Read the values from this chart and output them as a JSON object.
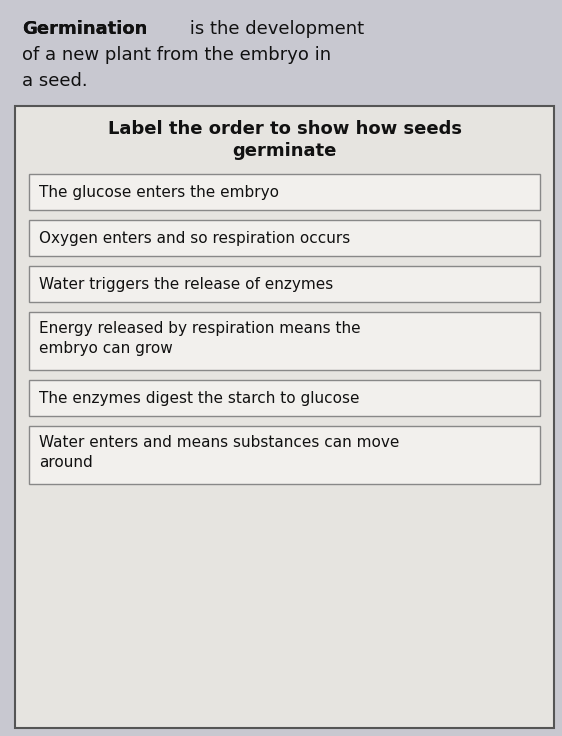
{
  "bg_color": "#c8c8d0",
  "page_bg": "#f0eeeb",
  "intro_bold": "Germination",
  "intro_normal": " is the development",
  "intro_line2": "of a new plant from the embryo in",
  "intro_line3": "a seed.",
  "box_title_line1": "Label the order to show how seeds",
  "box_title_line2": "germinate",
  "items": [
    "The glucose enters the embryo",
    "Oxygen enters and so respiration occurs",
    "Water triggers the release of enzymes",
    "Energy released by respiration means the\nembryo can grow",
    "The enzymes digest the starch to glucose",
    "Water enters and means substances can move\naround"
  ],
  "outer_box_facecolor": "#e6e4e0",
  "outer_box_edgecolor": "#555555",
  "item_box_facecolor": "#f2f0ed",
  "item_box_edgecolor": "#888888",
  "title_color": "#111111",
  "text_color": "#111111",
  "title_fontsize": 13,
  "item_fontsize": 11,
  "intro_fontsize": 13,
  "fig_width": 5.62,
  "fig_height": 7.36,
  "dpi": 100
}
